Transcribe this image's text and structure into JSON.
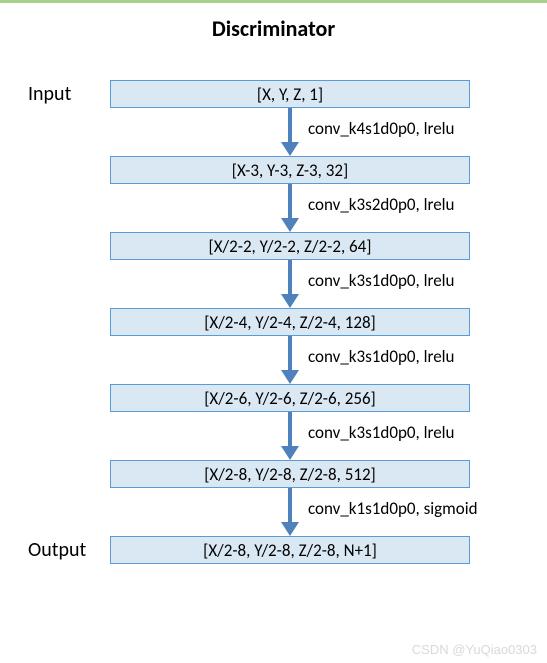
{
  "title": "Discriminator",
  "input_label": "Input",
  "output_label": "Output",
  "colors": {
    "box_fill": "#dae8f3",
    "box_border": "#5b9bd5",
    "arrow": "#4f81bd",
    "top_border": "#a8d08d",
    "text": "#000000",
    "watermark": "#d9d9d9"
  },
  "layers": [
    {
      "shape": "[X, Y, Z, 1]"
    },
    {
      "shape": "[X-3, Y-3, Z-3, 32]"
    },
    {
      "shape": "[X/2-2, Y/2-2, Z/2-2, 64]"
    },
    {
      "shape": "[X/2-4, Y/2-4, Z/2-4, 128]"
    },
    {
      "shape": "[X/2-6, Y/2-6, Z/2-6, 256]"
    },
    {
      "shape": "[X/2-8, Y/2-8, Z/2-8, 512]"
    },
    {
      "shape": "[X/2-8, Y/2-8, Z/2-8, N+1]"
    }
  ],
  "ops": [
    "conv_k4s1d0p0, lrelu",
    "conv_k3s2d0p0, lrelu",
    "conv_k3s1d0p0, lrelu",
    "conv_k3s1d0p0, lrelu",
    "conv_k3s1d0p0, lrelu",
    "conv_k1s1d0p0, sigmoid"
  ],
  "watermark": "CSDN @YuQiao0303"
}
